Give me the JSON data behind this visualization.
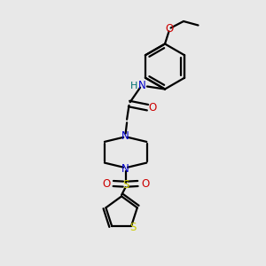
{
  "bg_color": "#e8e8e8",
  "bond_color": "#000000",
  "N_color": "#0000cc",
  "O_color": "#cc0000",
  "S_color": "#cccc00",
  "H_color": "#007070",
  "line_width": 1.6,
  "fig_size": [
    3.0,
    3.0
  ],
  "dpi": 100,
  "xlim": [
    0,
    10
  ],
  "ylim": [
    0,
    10
  ]
}
